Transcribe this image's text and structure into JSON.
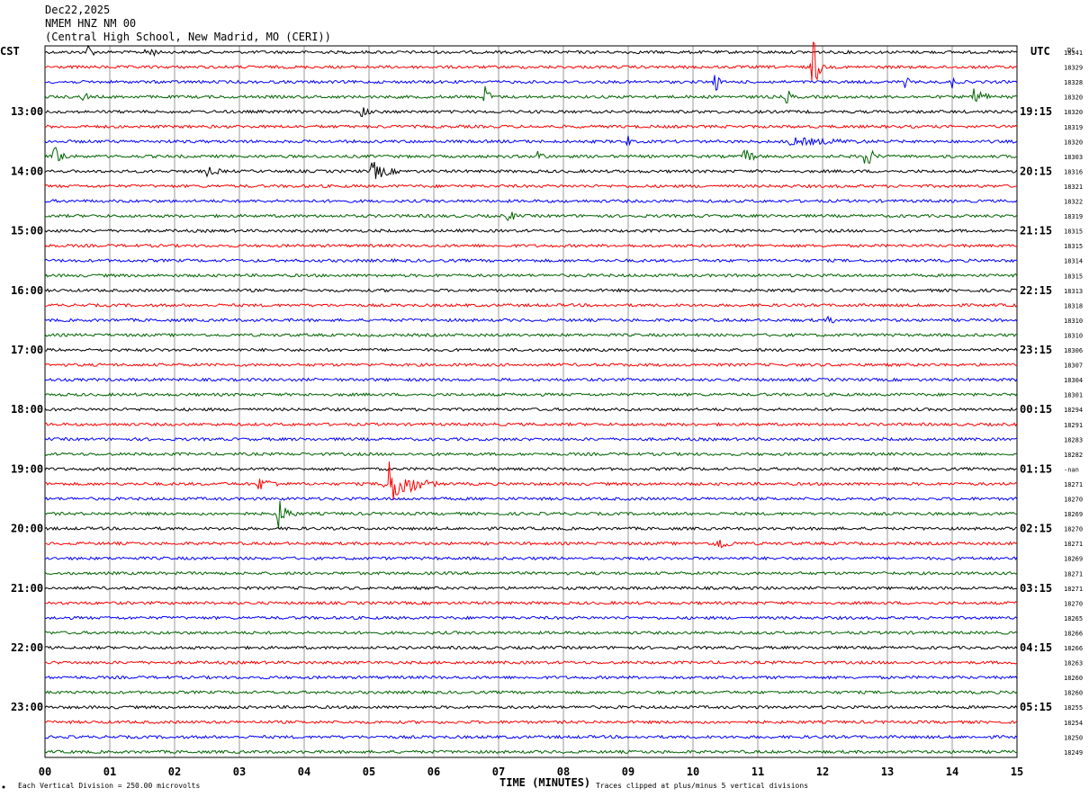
{
  "header": {
    "date": "Dec22,2025",
    "station": "NMEM HNZ NM 00",
    "location": "(Central High School, New Madrid, MO (CERI))"
  },
  "left_zone_label": "CST",
  "right_zone_label": "UTC",
  "dc_label": "DC",
  "chart_data": {
    "type": "line",
    "title": "",
    "xlabel": "TIME (MINUTES)",
    "ylabel": "",
    "xlim": [
      0,
      15
    ],
    "x_ticks": [
      "00",
      "01",
      "02",
      "03",
      "04",
      "05",
      "06",
      "07",
      "08",
      "09",
      "10",
      "11",
      "12",
      "13",
      "14",
      "15"
    ],
    "grid": "vertical lines every minute",
    "trace_colors": [
      "#000000",
      "#ff0000",
      "#0000ff",
      "#006400"
    ],
    "left_hour_labels": [
      "13:00",
      "14:00",
      "15:00",
      "16:00",
      "17:00",
      "18:00",
      "19:00",
      "20:00",
      "21:00",
      "22:00",
      "23:00"
    ],
    "right_hour_labels": [
      "19:15",
      "20:15",
      "21:15",
      "22:15",
      "23:15",
      "00:15",
      "01:15",
      "02:15",
      "03:15",
      "04:15",
      "05:15"
    ],
    "dc_offsets": [
      "18341",
      "18329",
      "18328",
      "18320",
      "18320",
      "18319",
      "18320",
      "18303",
      "18316",
      "18321",
      "18322",
      "18319",
      "18315",
      "18315",
      "18314",
      "18315",
      "18313",
      "18318",
      "18310",
      "18310",
      "18306",
      "18307",
      "18304",
      "18301",
      "18294",
      "18291",
      "18283",
      "18282",
      "-nan",
      "18271",
      "18270",
      "18269",
      "18270",
      "18271",
      "18269",
      "18271",
      "18271",
      "18270",
      "18265",
      "18266",
      "18266",
      "18263",
      "18260",
      "18260",
      "18255",
      "18254",
      "18250",
      "18249"
    ],
    "events": [
      {
        "row": 0,
        "minute": 0.68,
        "amp": 14,
        "dur": 0.12
      },
      {
        "row": 0,
        "minute": 1.58,
        "amp": 12,
        "dur": 0.25
      },
      {
        "row": 1,
        "minute": 11.85,
        "amp": 40,
        "dur": 0.18
      },
      {
        "row": 2,
        "minute": 10.35,
        "amp": 14,
        "dur": 0.12
      },
      {
        "row": 2,
        "minute": 13.25,
        "amp": 8,
        "dur": 0.25
      },
      {
        "row": 2,
        "minute": 14.0,
        "amp": 8,
        "dur": 0.2
      },
      {
        "row": 3,
        "minute": 0.6,
        "amp": 9,
        "dur": 0.15
      },
      {
        "row": 3,
        "minute": 6.8,
        "amp": 16,
        "dur": 0.15
      },
      {
        "row": 3,
        "minute": 11.45,
        "amp": 10,
        "dur": 0.2
      },
      {
        "row": 3,
        "minute": 14.35,
        "amp": 14,
        "dur": 0.35
      },
      {
        "row": 4,
        "minute": 4.9,
        "amp": 12,
        "dur": 0.2
      },
      {
        "row": 6,
        "minute": 9.0,
        "amp": 8,
        "dur": 0.1
      },
      {
        "row": 6,
        "minute": 11.5,
        "amp": 5,
        "dur": 3.2
      },
      {
        "row": 7,
        "minute": 0.15,
        "amp": 14,
        "dur": 0.35
      },
      {
        "row": 7,
        "minute": 7.6,
        "amp": 8,
        "dur": 0.3
      },
      {
        "row": 7,
        "minute": 10.8,
        "amp": 10,
        "dur": 0.35
      },
      {
        "row": 7,
        "minute": 12.65,
        "amp": 16,
        "dur": 0.3
      },
      {
        "row": 8,
        "minute": 2.5,
        "amp": 6,
        "dur": 0.6
      },
      {
        "row": 8,
        "minute": 5.05,
        "amp": 12,
        "dur": 0.6
      },
      {
        "row": 11,
        "minute": 7.15,
        "amp": 8,
        "dur": 0.3
      },
      {
        "row": 18,
        "minute": 12.1,
        "amp": 6,
        "dur": 0.25
      },
      {
        "row": 29,
        "minute": 3.3,
        "amp": 8,
        "dur": 0.7
      },
      {
        "row": 29,
        "minute": 5.25,
        "amp": 32,
        "dur": 0.8
      },
      {
        "row": 31,
        "minute": 3.6,
        "amp": 18,
        "dur": 0.35
      },
      {
        "row": 33,
        "minute": 10.35,
        "amp": 10,
        "dur": 0.5
      }
    ]
  },
  "footer": {
    "scale_note": "Each Vertical Division =  250.00 microvolts",
    "clip_note": "Traces clipped at plus/minus 5 vertical divisions"
  }
}
